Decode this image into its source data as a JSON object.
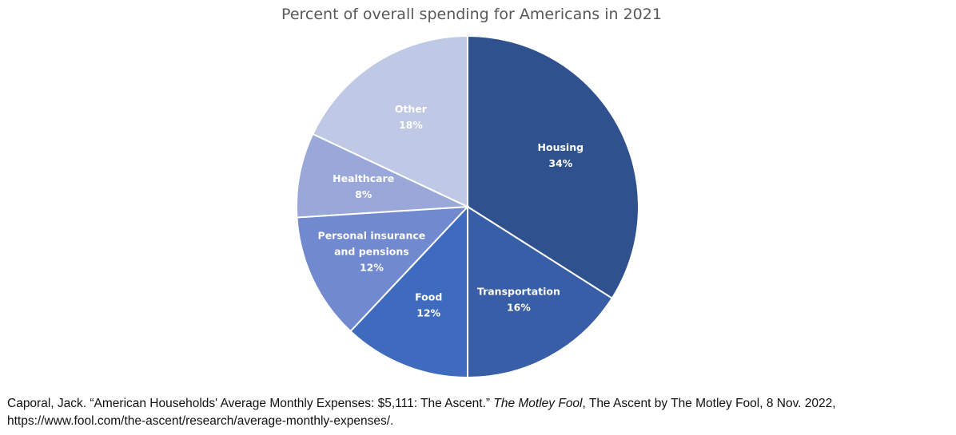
{
  "chart_data": {
    "type": "pie",
    "title": "Percent of overall spending for Americans in 2021",
    "slices": [
      {
        "label_lines": [
          "Housing"
        ],
        "value": 34,
        "value_label": "34%",
        "color": "#2F528F"
      },
      {
        "label_lines": [
          "Transportation"
        ],
        "value": 16,
        "value_label": "16%",
        "color": "#375EA6"
      },
      {
        "label_lines": [
          "Food"
        ],
        "value": 12,
        "value_label": "12%",
        "color": "#3E6BBD"
      },
      {
        "label_lines": [
          "Personal insurance",
          "and pensions"
        ],
        "value": 12,
        "value_label": "12%",
        "color": "#7189CE"
      },
      {
        "label_lines": [
          "Healthcare"
        ],
        "value": 8,
        "value_label": "8%",
        "color": "#9AA8D9"
      },
      {
        "label_lines": [
          "Other"
        ],
        "value": 18,
        "value_label": "18%",
        "color": "#BFC9E6"
      }
    ]
  },
  "citation": {
    "text_before": "Caporal, Jack. “American Households' Average Monthly Expenses: $5,111: The Ascent.” ",
    "source_name": "The Motley Fool",
    "text_after": ", The Ascent by The Motley Fool, 8 Nov. 2022,",
    "url": "https://www.fool.com/the-ascent/research/average-monthly-expenses/."
  }
}
